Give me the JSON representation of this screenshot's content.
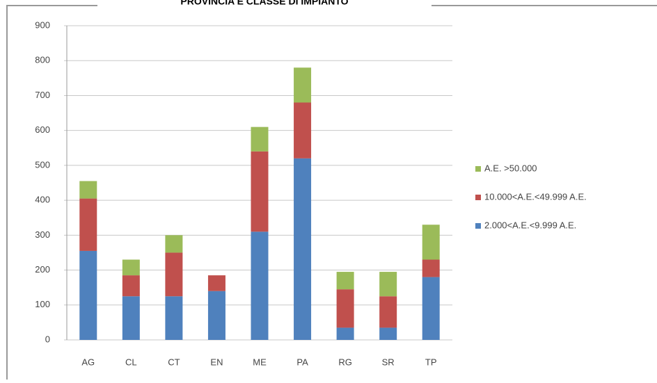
{
  "chart_data": {
    "type": "stacked_bar",
    "title": "PROVINCIA E CLASSE DI IMPIANTO",
    "categories": [
      "AG",
      "CL",
      "CT",
      "EN",
      "ME",
      "PA",
      "RG",
      "SR",
      "TP"
    ],
    "series": [
      {
        "name": "2.000<A.E.<9.999 A.E.",
        "color": "#4f81bd",
        "values": [
          255,
          125,
          125,
          140,
          310,
          520,
          35,
          35,
          180
        ]
      },
      {
        "name": "10.000<A.E.<49.999 A.E.",
        "color": "#c0504d",
        "values": [
          150,
          60,
          125,
          45,
          230,
          160,
          110,
          90,
          50
        ]
      },
      {
        "name": "A.E. >50.000",
        "color": "#9bbb59",
        "values": [
          50,
          45,
          50,
          0,
          70,
          100,
          50,
          70,
          100
        ]
      }
    ],
    "ylim": [
      0,
      900
    ],
    "yticks": [
      0,
      100,
      200,
      300,
      400,
      500,
      600,
      700,
      800,
      900
    ],
    "grid": true,
    "legend": "right"
  }
}
